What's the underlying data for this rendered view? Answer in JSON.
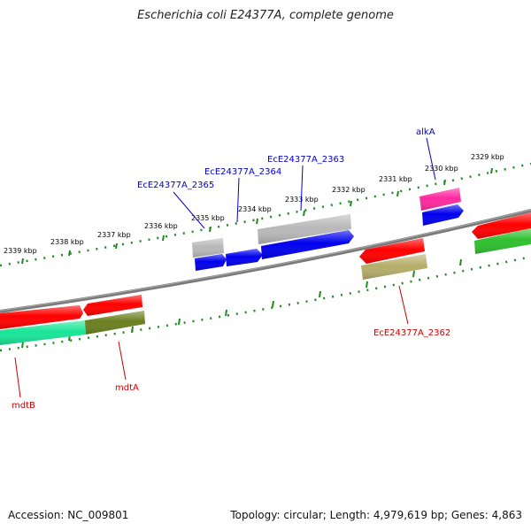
{
  "title": "Escherichia coli E24377A, complete genome",
  "footer": {
    "accession": "Accession: NC_009801",
    "topology": "Topology: circular; Length: 4,979,619 bp; Genes: 4,863"
  },
  "colors": {
    "backbone": "#808080",
    "tick": "#208a20",
    "label_blue": "#0000cc",
    "label_red": "#cc0000",
    "red": "#ff0000",
    "blue": "#0000ee",
    "gray": "#b8b8b8",
    "olive": "#6b7f1f",
    "khaki": "#b5ae6a",
    "magenta": "#ff2aa0",
    "green": "#2fc02f",
    "mint": "#19e597"
  },
  "ticks": [
    {
      "text": "2339 kbp"
    },
    {
      "text": "2338 kbp"
    },
    {
      "text": "2337 kbp"
    },
    {
      "text": "2336 kbp"
    },
    {
      "text": "2335 kbp"
    },
    {
      "text": "2334 kbp"
    },
    {
      "text": "2333 kbp"
    },
    {
      "text": "2332 kbp"
    },
    {
      "text": "2331 kbp"
    },
    {
      "text": "2330 kbp"
    },
    {
      "text": "2329 kbp"
    }
  ],
  "labels": [
    {
      "text": "EcE24377A_2365",
      "color": "blue"
    },
    {
      "text": "EcE24377A_2364",
      "color": "blue"
    },
    {
      "text": "EcE24377A_2363",
      "color": "blue"
    },
    {
      "text": "alkA",
      "color": "blue"
    },
    {
      "text": "EcE24377A_2362",
      "color": "red"
    },
    {
      "text": "mdtA",
      "color": "red"
    },
    {
      "text": "mdtB",
      "color": "red"
    }
  ]
}
